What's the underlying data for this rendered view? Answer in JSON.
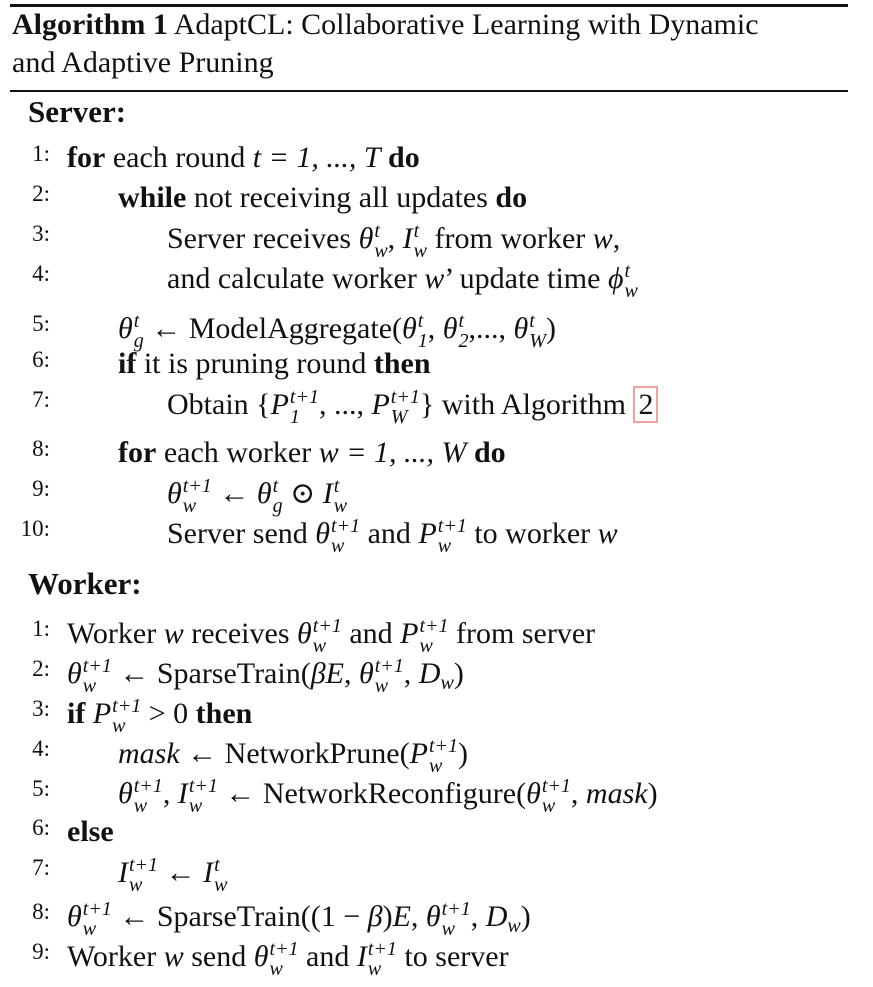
{
  "algorithm": {
    "label": "Algorithm 1",
    "title_line1": "AdaptCL: Collaborative Learning with Dynamic",
    "title_line2": "and Adaptive Pruning"
  },
  "server": {
    "heading": "Server:",
    "lines": [
      {
        "no": "1:"
      },
      {
        "no": "2:"
      },
      {
        "no": "3:"
      },
      {
        "no": "4:"
      },
      {
        "no": "5:"
      },
      {
        "no": "6:"
      },
      {
        "no": "7:"
      },
      {
        "no": "8:"
      },
      {
        "no": "9:"
      },
      {
        "no": "10:"
      }
    ]
  },
  "worker": {
    "heading": "Worker:",
    "lines": [
      {
        "no": "1:"
      },
      {
        "no": "2:"
      },
      {
        "no": "3:"
      },
      {
        "no": "4:"
      },
      {
        "no": "5:"
      },
      {
        "no": "6:"
      },
      {
        "no": "7:"
      },
      {
        "no": "8:"
      },
      {
        "no": "9:"
      }
    ]
  },
  "text": {
    "for": "for",
    "each_round": "each round",
    "t_range": "t = 1, ..., T",
    "do": "do",
    "while": "while",
    "not_receiving": "not receiving all updates",
    "server_receives": "Server receives",
    "from_worker": "from worker",
    "and_calculate": "and calculate worker",
    "update_time": "’ update time",
    "model_aggregate": "ModelAggregate(",
    "if": "if",
    "pruning_round": "it is pruning round",
    "then": "then",
    "obtain": "Obtain",
    "with_algorithm": "with Algorithm",
    "algo_ref": "2",
    "each_worker": "each worker",
    "w_range": "w = 1, ..., W",
    "server_send": "Server send",
    "and": "and",
    "to_worker": "to worker",
    "worker_label": "Worker",
    "receives": "receives",
    "from_server": "from server",
    "sparse_train": "SparseTrain(",
    "network_prune": "NetworkPrune(",
    "network_reconfigure": "NetworkReconfigure(",
    "else": "else",
    "send": "send",
    "to_server": "to server",
    "mask": "mask"
  }
}
